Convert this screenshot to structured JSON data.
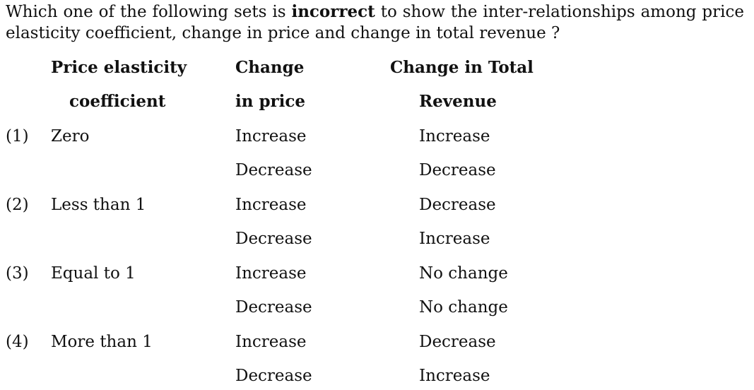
{
  "question": {
    "pre": "Which one of the following sets is ",
    "bold": "incorrect",
    "post": " to show the inter-relationships among price elasticity coefficient, change in price and change in total revenue ?"
  },
  "headers": {
    "col1_line1": "Price elasticity",
    "col1_line2": "coefficient",
    "col2_line1": "Change",
    "col2_line2": "in price",
    "col3_line1": "Change in Total",
    "col3_line2": "Revenue"
  },
  "options": [
    {
      "num": "(1)",
      "coefficient": "Zero",
      "rows": [
        {
          "price": "Increase",
          "revenue": "Increase"
        },
        {
          "price": "Decrease",
          "revenue": "Decrease"
        }
      ]
    },
    {
      "num": "(2)",
      "coefficient": "Less than 1",
      "rows": [
        {
          "price": "Increase",
          "revenue": "Decrease"
        },
        {
          "price": "Decrease",
          "revenue": "Increase"
        }
      ]
    },
    {
      "num": "(3)",
      "coefficient": "Equal to 1",
      "rows": [
        {
          "price": "Increase",
          "revenue": "No change"
        },
        {
          "price": "Decrease",
          "revenue": "No change"
        }
      ]
    },
    {
      "num": "(4)",
      "coefficient": "More than 1",
      "rows": [
        {
          "price": "Increase",
          "revenue": "Decrease"
        },
        {
          "price": "Decrease",
          "revenue": "Increase"
        }
      ]
    }
  ]
}
